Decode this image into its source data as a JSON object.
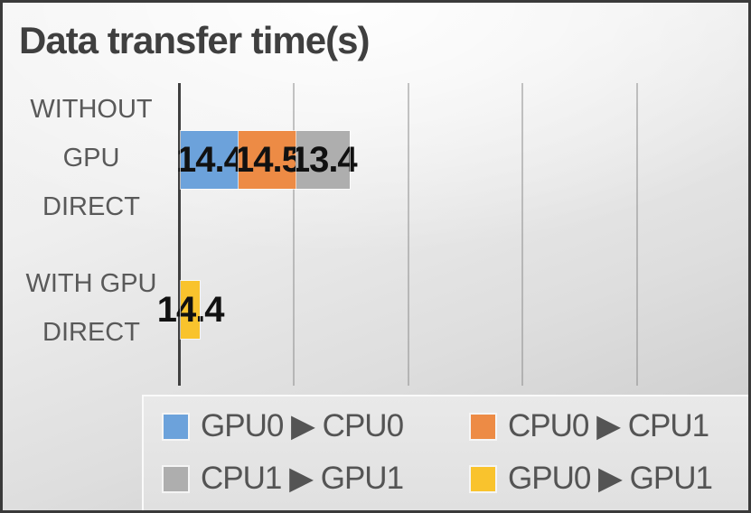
{
  "title": "Data transfer time(s)",
  "colors": {
    "blue": "#6CA2DB",
    "orange": "#ED8B45",
    "gray": "#AEAEAE",
    "yellow": "#F9C32D",
    "axis": "#3F3F3F",
    "text": "#595959",
    "title_text": "#3F3F3F"
  },
  "chart_data": {
    "type": "bar",
    "orientation": "horizontal",
    "stacked": true,
    "title": "Data transfer time(s)",
    "categories": [
      "WITHOUT GPU DIRECT",
      "WITH GPU DIRECT"
    ],
    "category_lines": [
      [
        "WITHOUT",
        "GPU",
        "DIRECT"
      ],
      [
        "WITH GPU",
        "DIRECT"
      ]
    ],
    "series": [
      {
        "name": "GPU0 ▶ CPU0",
        "color": "#6CA2DB",
        "values": [
          14.4,
          null
        ]
      },
      {
        "name": "CPU0 ▶ CPU1",
        "color": "#ED8B45",
        "values": [
          14.5,
          null
        ]
      },
      {
        "name": "CPU1 ▶ GPU1",
        "color": "#AEAEAE",
        "values": [
          13.4,
          null
        ]
      },
      {
        "name": "GPU0 ▶ GPU1",
        "color": "#F9C32D",
        "values": [
          null,
          14.4
        ]
      }
    ],
    "xlim": [
      0,
      50
    ],
    "gridline_interval": 10,
    "grid": true,
    "legend_position": "bottom",
    "data_labels": true
  }
}
